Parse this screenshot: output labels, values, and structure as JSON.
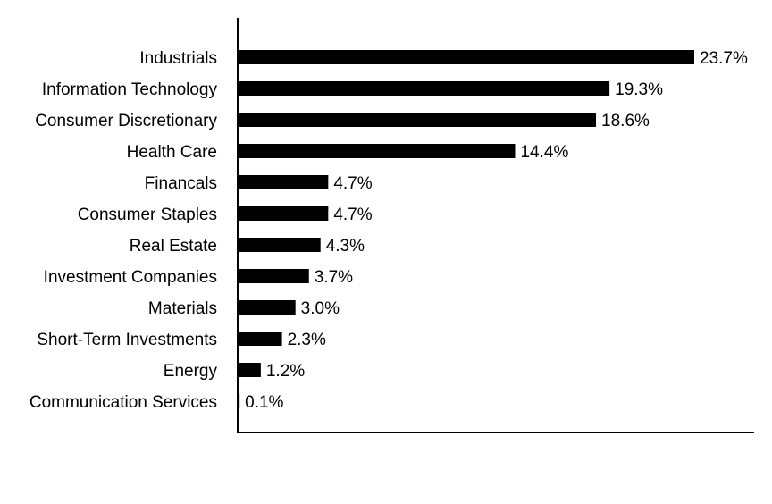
{
  "chart_data": {
    "type": "bar",
    "orientation": "horizontal",
    "categories": [
      "Industrials",
      "Information Technology",
      "Consumer Discretionary",
      "Health Care",
      "Financals",
      "Consumer Staples",
      "Real Estate",
      "Investment Companies",
      "Materials",
      "Short-Term Investments",
      "Energy",
      "Communication Services"
    ],
    "values": [
      23.7,
      19.3,
      18.6,
      14.4,
      4.7,
      4.7,
      4.3,
      3.7,
      3.0,
      2.3,
      1.2,
      0.1
    ],
    "value_labels": [
      "23.7%",
      "19.3%",
      "18.6%",
      "14.4%",
      "4.7%",
      "4.7%",
      "4.3%",
      "3.7%",
      "3.0%",
      "2.3%",
      "1.2%",
      "0.1%"
    ],
    "title": "",
    "xlabel": "",
    "ylabel": "",
    "xlim": [
      0,
      27
    ],
    "grid": false,
    "bar_color": "#000000",
    "axis_color": "#000000"
  }
}
